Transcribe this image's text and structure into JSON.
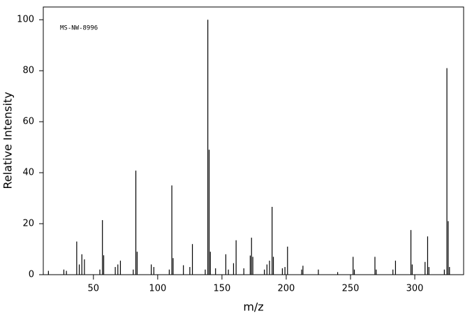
{
  "chart_data": {
    "type": "bar",
    "annotation": "MS-NW-8996",
    "x_label": "m/z",
    "y_label": "Relative Intensity",
    "color": "#000000",
    "x": [
      15,
      27,
      29,
      37,
      39,
      41,
      43,
      55,
      57,
      58,
      67,
      69,
      71,
      81,
      83,
      84,
      95,
      97,
      109,
      111,
      112,
      120,
      125,
      127,
      137,
      139,
      140,
      141,
      145,
      153,
      155,
      159,
      161,
      167,
      172,
      173,
      174,
      183,
      185,
      187,
      189,
      190,
      197,
      199,
      201,
      212,
      213,
      225,
      240,
      252,
      253,
      269,
      270,
      283,
      285,
      297,
      298,
      308,
      310,
      311,
      323,
      325,
      326,
      327
    ],
    "values": [
      1.5,
      2,
      1.5,
      13,
      4,
      8,
      6,
      2,
      21.4,
      7.6,
      3,
      4,
      5.5,
      2,
      40.8,
      9,
      4,
      3,
      2,
      35,
      6.5,
      3.7,
      3,
      12,
      2,
      100,
      49,
      9,
      2.5,
      8,
      2,
      4.5,
      13.5,
      2.5,
      7.5,
      14.5,
      7,
      2,
      4,
      5.5,
      26.6,
      7,
      2.5,
      3,
      11,
      2,
      3.5,
      2,
      1,
      7,
      2,
      7,
      2,
      2,
      5.5,
      17.5,
      4,
      5,
      15,
      3,
      2,
      81,
      21,
      3
    ],
    "xlim": [
      11,
      338
    ],
    "ylim": [
      0,
      105
    ],
    "xticks": [
      50,
      100,
      150,
      200,
      250,
      300
    ],
    "yticks": [
      0,
      20,
      40,
      60,
      80,
      100
    ]
  }
}
